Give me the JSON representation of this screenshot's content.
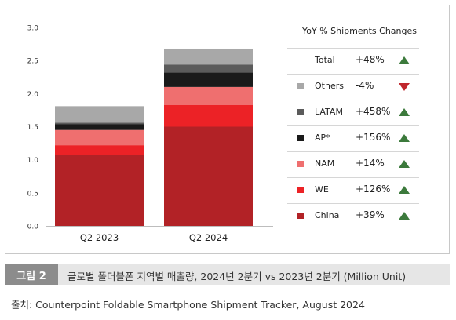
{
  "chart_data": {
    "type": "bar",
    "stacked": true,
    "categories": [
      "Q2 2023",
      "Q2 2024"
    ],
    "ylim": [
      0,
      3.0
    ],
    "yticks": [
      "0.0",
      "0.5",
      "1.0",
      "1.5",
      "2.0",
      "2.5",
      "3.0"
    ],
    "series": [
      {
        "name": "China",
        "color": "#b22226",
        "values": [
          1.07,
          1.5
        ]
      },
      {
        "name": "WE",
        "color": "#ec2226",
        "values": [
          0.15,
          0.33
        ]
      },
      {
        "name": "NAM",
        "color": "#ef6f6f",
        "values": [
          0.23,
          0.27
        ]
      },
      {
        "name": "AP*",
        "color": "#1a1a1a",
        "values": [
          0.09,
          0.22
        ]
      },
      {
        "name": "LATAM",
        "color": "#5b5b5b",
        "values": [
          0.02,
          0.12
        ]
      },
      {
        "name": "Others",
        "color": "#a8a8a8",
        "values": [
          0.25,
          0.24
        ]
      }
    ],
    "legend": {
      "title": "YoY % Shipments Changes",
      "placement": "right",
      "rows": [
        {
          "name": "Total",
          "change": "+48%",
          "direction": "up",
          "color": ""
        },
        {
          "name": "Others",
          "change": "-4%",
          "direction": "down",
          "color": "#a8a8a8"
        },
        {
          "name": "LATAM",
          "change": "+458%",
          "direction": "up",
          "color": "#5b5b5b"
        },
        {
          "name": "AP*",
          "change": "+156%",
          "direction": "up",
          "color": "#1a1a1a"
        },
        {
          "name": "NAM",
          "change": "+14%",
          "direction": "up",
          "color": "#ef6f6f"
        },
        {
          "name": "WE",
          "change": "+126%",
          "direction": "up",
          "color": "#ec2226"
        },
        {
          "name": "China",
          "change": "+39%",
          "direction": "up",
          "color": "#b22226"
        }
      ]
    }
  },
  "caption": {
    "label": "그림 2",
    "text": "글로벌 폴더블폰 지역별 매출량, 2024년 2분기 vs 2023년 2분기 (Million Unit)"
  },
  "source": "출처: Counterpoint Foldable Smartphone Shipment Tracker, August 2024"
}
